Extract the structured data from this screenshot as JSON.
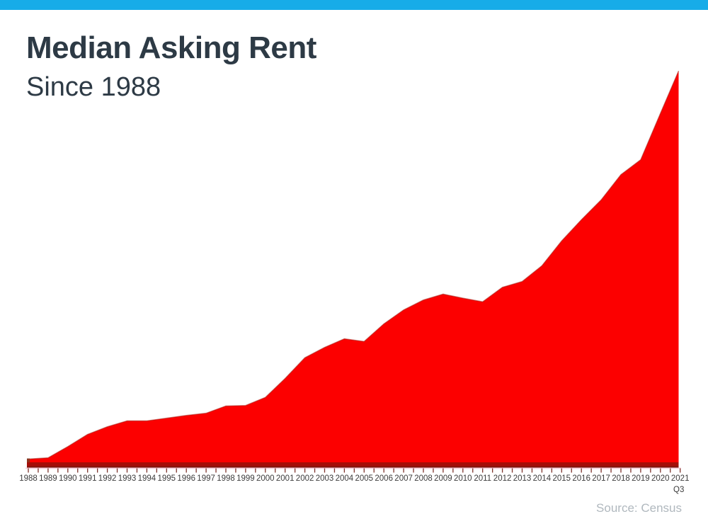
{
  "page": {
    "background": "#FFFFFF"
  },
  "accent_bar": {
    "color": "#17ACE8"
  },
  "header": {
    "title": "Median Asking Rent",
    "subtitle": "Since 1988",
    "text_color": "#2D3A45"
  },
  "chart_data": {
    "type": "area",
    "title": "Median Asking Rent",
    "subtitle": "Since 1988",
    "categories": [
      "1988",
      "1989",
      "1990",
      "1991",
      "1992",
      "1993",
      "1994",
      "1995",
      "1996",
      "1997",
      "1998",
      "1999",
      "2000",
      "2001",
      "2002",
      "2003",
      "2004",
      "2005",
      "2006",
      "2007",
      "2008",
      "2009",
      "2010",
      "2011",
      "2012",
      "2013",
      "2014",
      "2015",
      "2016",
      "2017",
      "2018",
      "2019",
      "2020",
      "2021"
    ],
    "values": [
      343,
      346,
      371,
      398,
      415,
      428,
      428,
      434,
      440,
      445,
      461,
      462,
      480,
      522,
      568,
      591,
      610,
      604,
      643,
      674,
      696,
      709,
      700,
      692,
      724,
      737,
      772,
      827,
      874,
      918,
      974,
      1007,
      1110,
      1204
    ],
    "last_tick_sub_label": "Q3",
    "last_point_label": "2021 Q3",
    "xlabel": "",
    "ylabel": "",
    "y_axis_visible": false,
    "values_unit": "USD/month, estimated (no y-axis labels shown in chart)",
    "ylim": [
      325,
      1250
    ],
    "grid": false,
    "legend": "none",
    "series_color": "#FC0000",
    "area_edge_color": "#A62117",
    "baseline_band_color": "#A60D08",
    "baseline_band_dark_color": "#7E150E",
    "axis_line_color": "#F8D2DE",
    "tick_color": "#7E332B",
    "label_color": "#3B3B3B",
    "minor_ticks_per_year": 2
  },
  "footer": {
    "source_label": "Source: Census",
    "color": "#B0B8BE"
  }
}
